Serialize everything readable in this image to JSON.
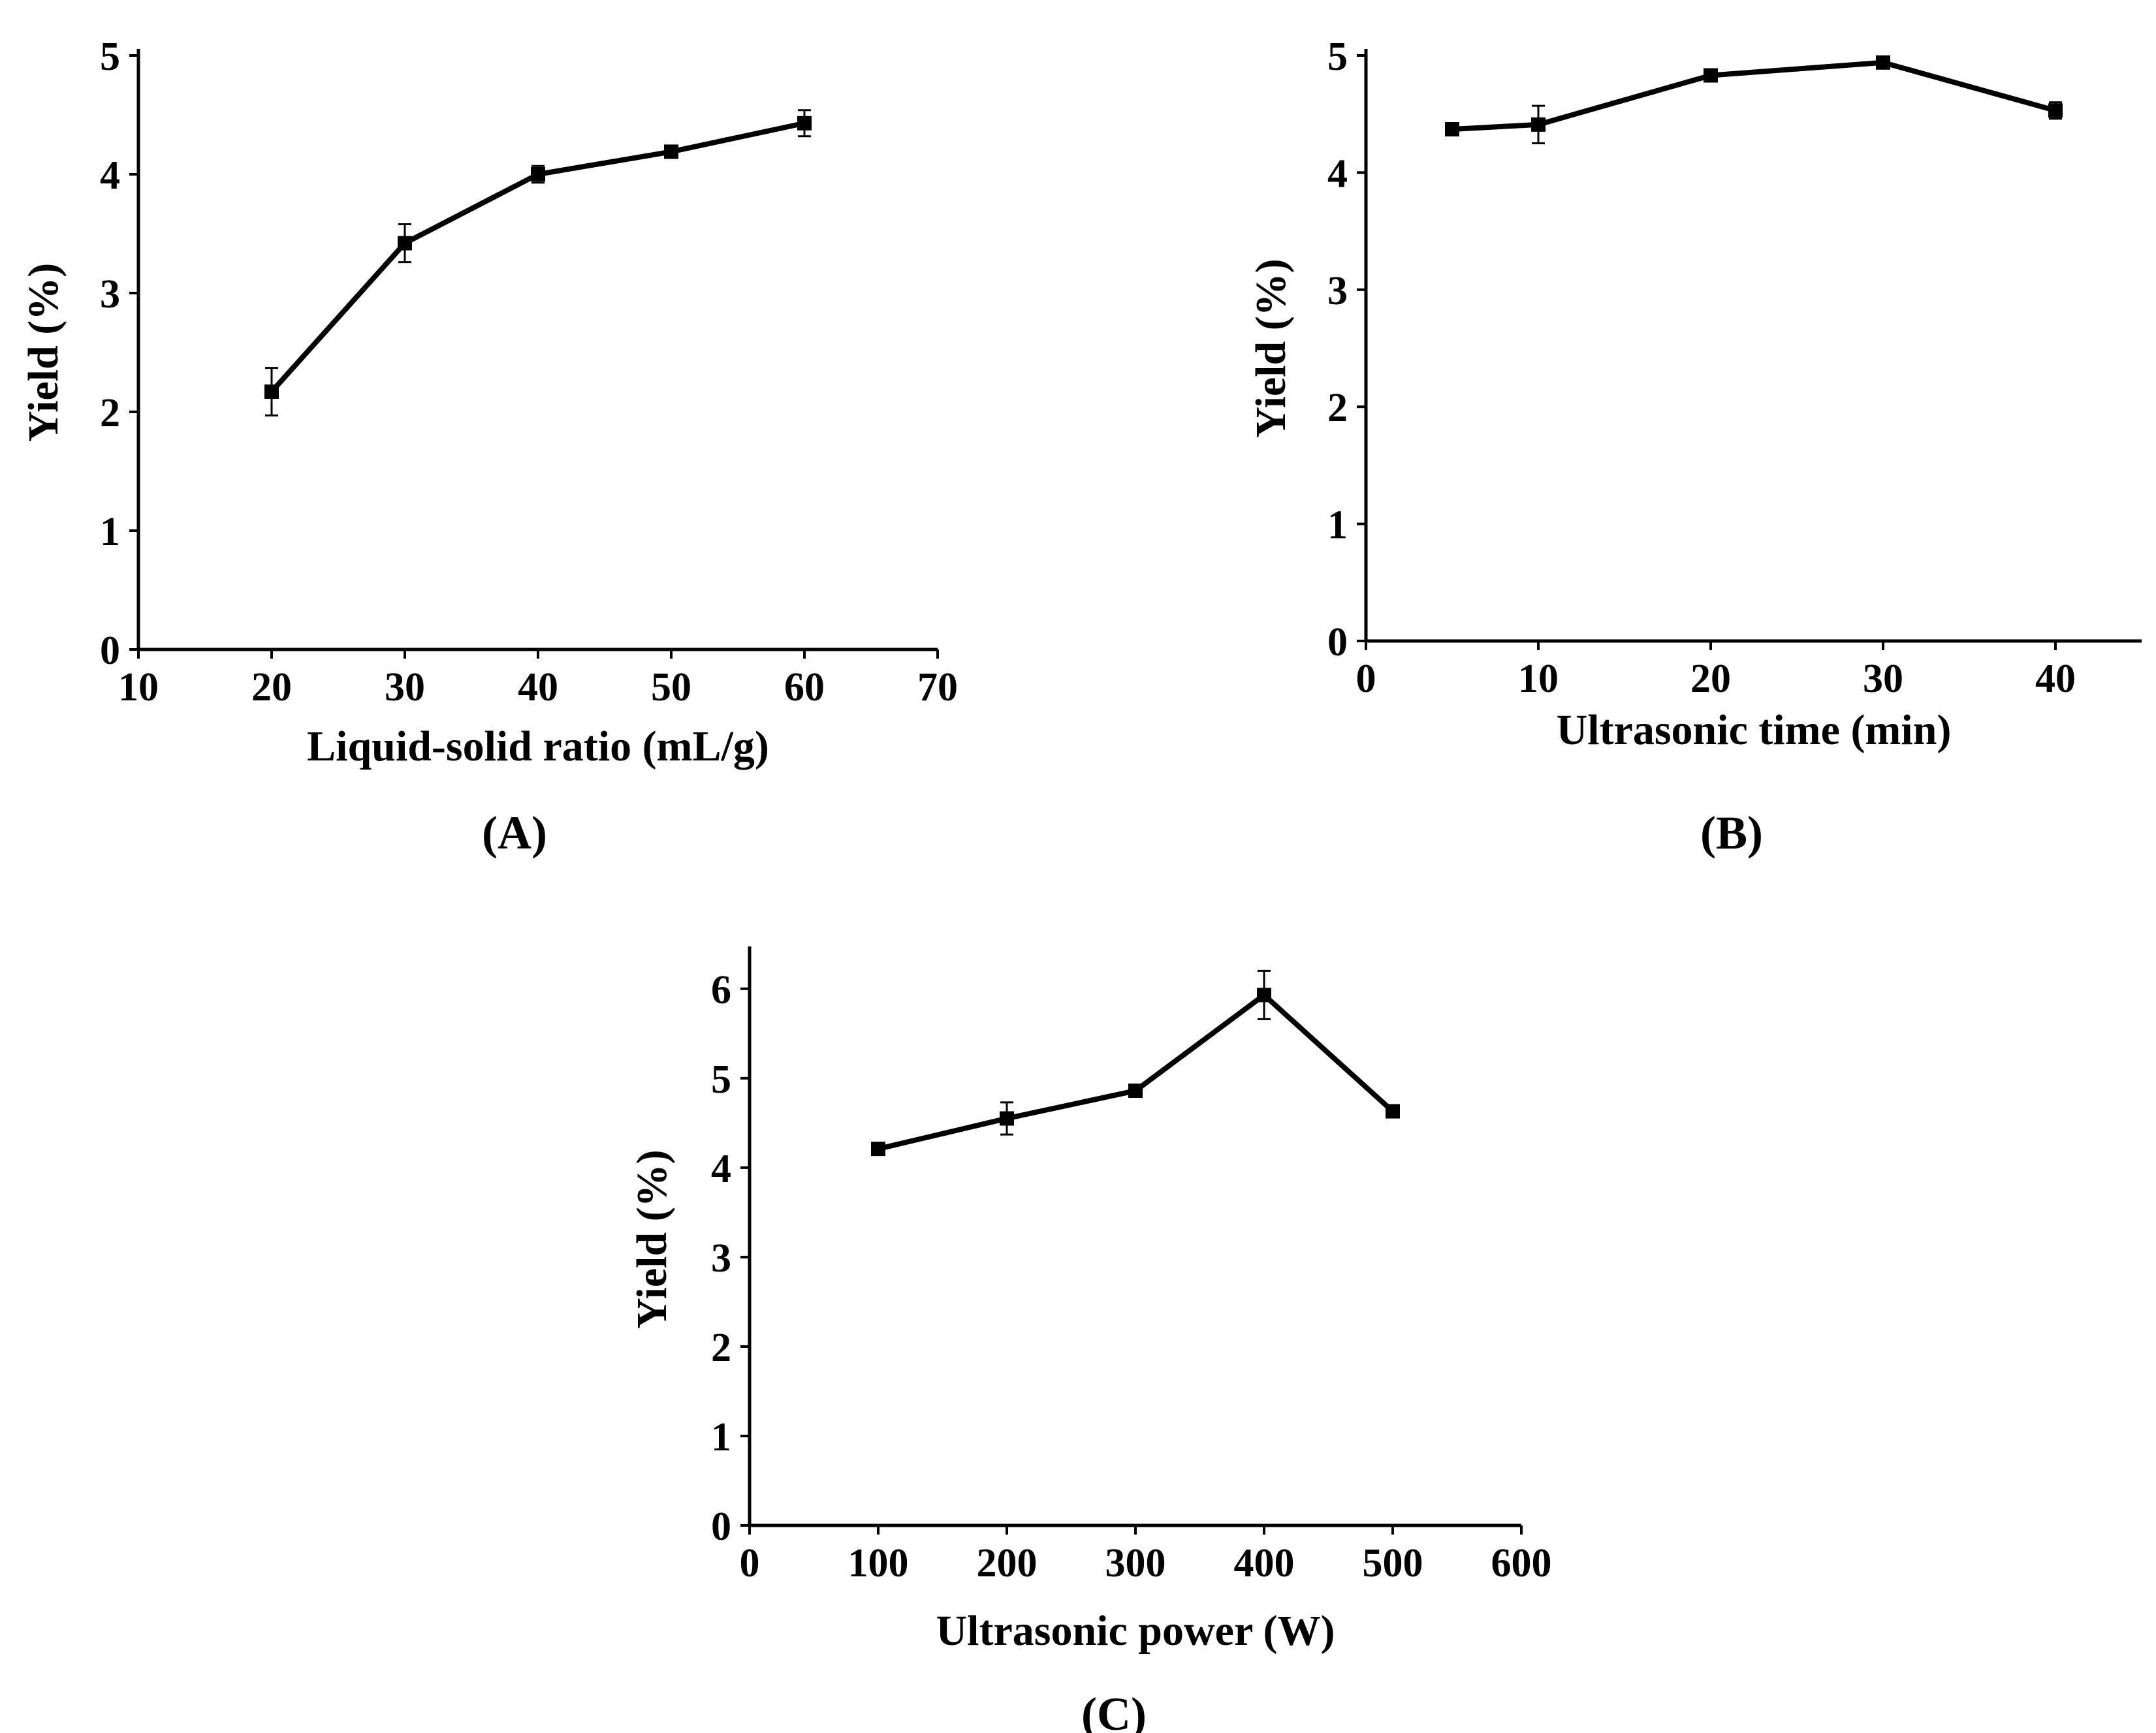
{
  "chart_data": [
    {
      "type": "line",
      "panel": "(A)",
      "xlabel": "Liquid-solid ratio (mL/g)",
      "ylabel": "Yield (%)",
      "xlim": [
        10,
        70
      ],
      "ylim": [
        0,
        5
      ],
      "xticks": [
        10,
        20,
        30,
        40,
        50,
        60,
        70
      ],
      "yticks": [
        0,
        1,
        2,
        3,
        4,
        5
      ],
      "x": [
        20,
        30,
        40,
        50,
        60
      ],
      "y": [
        2.17,
        3.42,
        4.0,
        4.19,
        4.43
      ],
      "err": [
        0.2,
        0.16,
        0.07,
        0.04,
        0.11
      ]
    },
    {
      "type": "line",
      "panel": "(B)",
      "xlabel": "Ultrasonic time (min)",
      "ylabel": "Yield (%)",
      "xlim": [
        0,
        45
      ],
      "ylim": [
        0,
        5
      ],
      "xticks": [
        0,
        10,
        20,
        30,
        40
      ],
      "yticks": [
        0,
        1,
        2,
        3,
        4,
        5
      ],
      "x": [
        5,
        10,
        20,
        30,
        40
      ],
      "y": [
        4.37,
        4.41,
        4.83,
        4.94,
        4.53
      ],
      "err": [
        0.02,
        0.16,
        0.03,
        0.03,
        0.07
      ]
    },
    {
      "type": "line",
      "panel": "(C)",
      "xlabel": "Ultrasonic power (W)",
      "ylabel": "Yield (%)",
      "xlim": [
        0,
        600
      ],
      "ylim": [
        0,
        6.4
      ],
      "xticks": [
        0,
        100,
        200,
        300,
        400,
        500,
        600
      ],
      "yticks": [
        0,
        1,
        2,
        3,
        4,
        5,
        6
      ],
      "x": [
        100,
        200,
        300,
        400,
        500
      ],
      "y": [
        4.21,
        4.55,
        4.86,
        5.93,
        4.63
      ],
      "err": [
        0.02,
        0.18,
        0.05,
        0.27,
        0.02
      ]
    }
  ]
}
